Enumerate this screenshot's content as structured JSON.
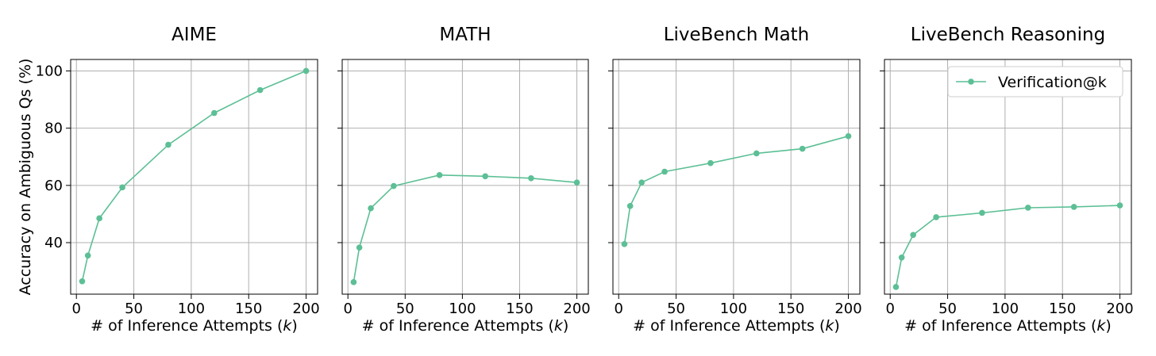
{
  "figure": {
    "ylabel": "Accuracy on Ambiguous Qs (%)"
  },
  "chart_data": [
    {
      "type": "line",
      "title": "AIME",
      "xlabel": "# of Inference Attempts (k)",
      "ylabel": "Accuracy on Ambiguous Qs (%)",
      "xlim": [
        -5,
        210
      ],
      "ylim": [
        22,
        104
      ],
      "xticks": [
        0,
        50,
        100,
        150,
        200
      ],
      "yticks": [
        40,
        60,
        80,
        100
      ],
      "grid": true,
      "series": [
        {
          "name": "Verification@k",
          "color": "#5cbf95",
          "x": [
            5,
            10,
            20,
            40,
            80,
            120,
            160,
            200
          ],
          "y": [
            26.5,
            35.5,
            48.5,
            59.3,
            74.2,
            85.3,
            93.3,
            100
          ]
        }
      ]
    },
    {
      "type": "line",
      "title": "MATH",
      "xlabel": "# of Inference Attempts (k)",
      "xlim": [
        -5,
        210
      ],
      "ylim": [
        22,
        104
      ],
      "xticks": [
        0,
        50,
        100,
        150,
        200
      ],
      "grid": true,
      "series": [
        {
          "name": "Verification@k",
          "color": "#5cbf95",
          "x": [
            5,
            10,
            20,
            40,
            80,
            120,
            160,
            200
          ],
          "y": [
            26.2,
            38.3,
            52.0,
            59.8,
            63.6,
            63.2,
            62.5,
            61.0
          ]
        }
      ]
    },
    {
      "type": "line",
      "title": "LiveBench Math",
      "xlabel": "# of Inference Attempts (k)",
      "xlim": [
        -5,
        210
      ],
      "ylim": [
        22,
        104
      ],
      "xticks": [
        0,
        50,
        100,
        150,
        200
      ],
      "grid": true,
      "series": [
        {
          "name": "Verification@k",
          "color": "#5cbf95",
          "x": [
            5,
            10,
            20,
            40,
            80,
            120,
            160,
            200
          ],
          "y": [
            39.5,
            52.8,
            61.0,
            64.8,
            67.8,
            71.2,
            72.8,
            77.2
          ]
        }
      ]
    },
    {
      "type": "line",
      "title": "LiveBench Reasoning",
      "xlabel": "# of Inference Attempts (k)",
      "xlim": [
        -5,
        210
      ],
      "ylim": [
        22,
        104
      ],
      "xticks": [
        0,
        50,
        100,
        150,
        200
      ],
      "grid": true,
      "legend": {
        "placement": "top-right",
        "entries": [
          "Verification@k"
        ]
      },
      "series": [
        {
          "name": "Verification@k",
          "color": "#5cbf95",
          "x": [
            5,
            10,
            20,
            40,
            80,
            120,
            160,
            200
          ],
          "y": [
            24.5,
            34.8,
            42.7,
            48.9,
            50.4,
            52.2,
            52.5,
            53.0
          ]
        }
      ]
    }
  ]
}
